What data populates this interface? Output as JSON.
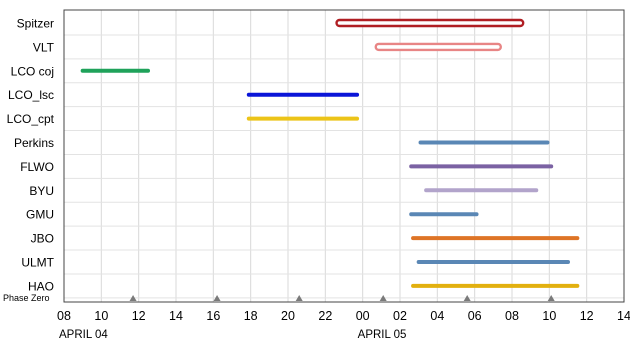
{
  "chart_data": {
    "type": "bar",
    "orientation": "horizontal-range",
    "categories": [
      "Spitzer",
      "VLT",
      "LCO  coj",
      "LCO_lsc",
      "LCO_cpt",
      "Perkins",
      "FLWO",
      "BYU",
      "GMU",
      "JBO",
      "ULMT",
      "HAO"
    ],
    "x_tick_labels": [
      "08",
      "10",
      "12",
      "14",
      "16",
      "18",
      "20",
      "22",
      "00",
      "02",
      "04",
      "06",
      "08",
      "10",
      "12",
      "14"
    ],
    "x_unit": "hours since April 04 00:00 UT",
    "xlim": [
      8,
      38
    ],
    "date_labels": [
      {
        "text": "APRIL 04",
        "x": 8
      },
      {
        "text": "APRIL 05",
        "x": 24
      }
    ],
    "phase_zero_label": "Phase Zero",
    "phase_zero_x": [
      11.7,
      16.2,
      20.6,
      25.1,
      29.6,
      34.1
    ],
    "ranges": [
      {
        "name": "Spitzer",
        "start": 22.6,
        "end": 32.6,
        "color": "#b01e23",
        "style": "outline"
      },
      {
        "name": "VLT",
        "start": 24.7,
        "end": 31.4,
        "color": "#e88585",
        "style": "outline"
      },
      {
        "name": "LCO  coj",
        "start": 9.0,
        "end": 12.5,
        "color": "#1fa25a",
        "style": "solid"
      },
      {
        "name": "LCO_lsc",
        "start": 17.9,
        "end": 23.7,
        "color": "#0a15d8",
        "style": "solid"
      },
      {
        "name": "LCO_cpt",
        "start": 17.9,
        "end": 23.7,
        "color": "#ecc418",
        "style": "solid"
      },
      {
        "name": "Perkins",
        "start": 27.1,
        "end": 33.9,
        "color": "#5a87b5",
        "style": "solid"
      },
      {
        "name": "FLWO",
        "start": 26.6,
        "end": 34.1,
        "color": "#7b62a3",
        "style": "solid"
      },
      {
        "name": "BYU",
        "start": 27.4,
        "end": 33.3,
        "color": "#b2a4cb",
        "style": "solid"
      },
      {
        "name": "GMU",
        "start": 26.6,
        "end": 30.1,
        "color": "#5a87b5",
        "style": "solid"
      },
      {
        "name": "JBO",
        "start": 26.7,
        "end": 35.5,
        "color": "#de7426",
        "style": "solid"
      },
      {
        "name": "ULMT",
        "start": 27.0,
        "end": 35.0,
        "color": "#5a87b5",
        "style": "solid"
      },
      {
        "name": "HAO",
        "start": 26.7,
        "end": 35.5,
        "color": "#e2b00f",
        "style": "solid"
      }
    ],
    "grid": true
  }
}
